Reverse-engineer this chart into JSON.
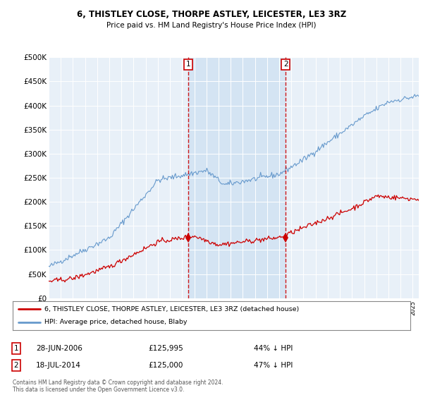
{
  "title": "6, THISTLEY CLOSE, THORPE ASTLEY, LEICESTER, LE3 3RZ",
  "subtitle": "Price paid vs. HM Land Registry's House Price Index (HPI)",
  "legend_line1": "6, THISTLEY CLOSE, THORPE ASTLEY, LEICESTER, LE3 3RZ (detached house)",
  "legend_line2": "HPI: Average price, detached house, Blaby",
  "annotation1_date": "28-JUN-2006",
  "annotation1_price": "£125,995",
  "annotation1_hpi": "44% ↓ HPI",
  "annotation2_date": "18-JUL-2014",
  "annotation2_price": "£125,000",
  "annotation2_hpi": "47% ↓ HPI",
  "footnote": "Contains HM Land Registry data © Crown copyright and database right 2024.\nThis data is licensed under the Open Government Licence v3.0.",
  "red_color": "#cc0000",
  "blue_color": "#6699cc",
  "shade_color": "#dce9f5",
  "plot_bg": "#e8f0f8",
  "ylim": [
    0,
    500000
  ],
  "xlim_start": 1995.0,
  "xlim_end": 2025.5,
  "sale1_x": 2006.49,
  "sale1_y": 125995,
  "sale2_x": 2014.54,
  "sale2_y": 125000
}
